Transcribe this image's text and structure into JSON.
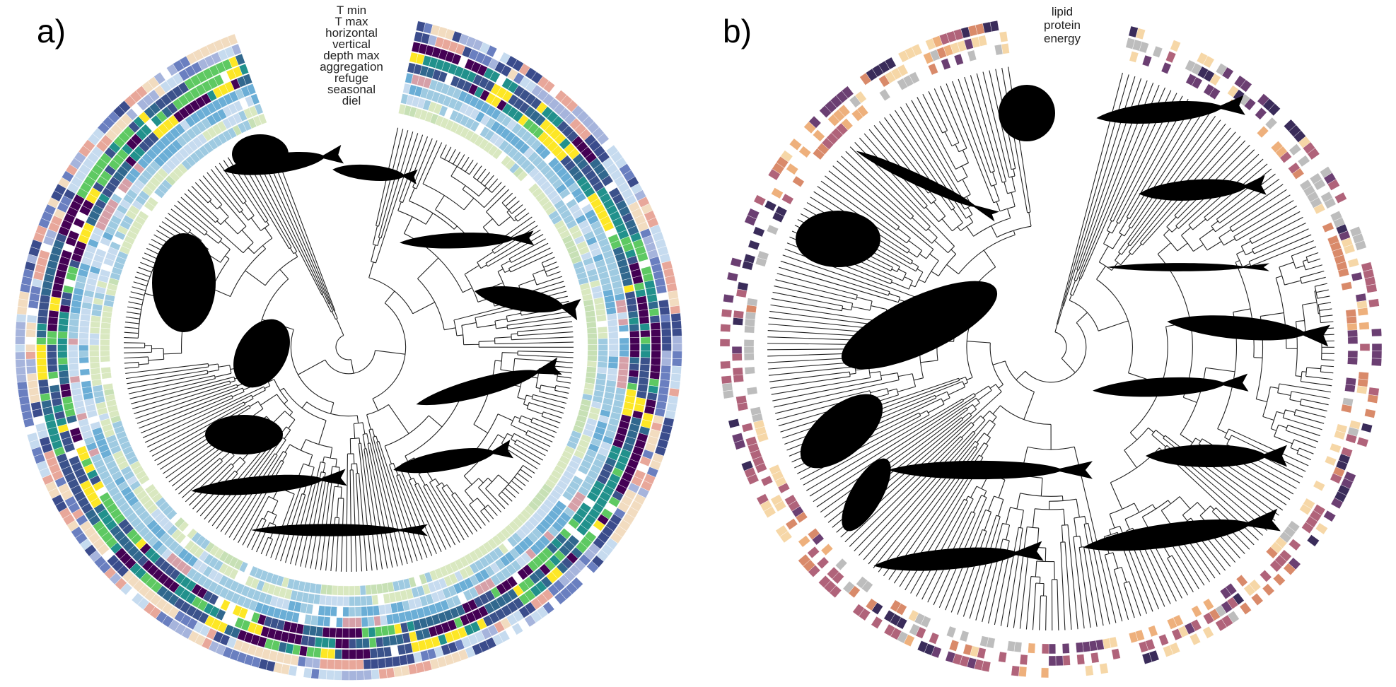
{
  "panels": [
    {
      "label": "a)",
      "trait_labels": [
        "T min",
        "T max",
        "horizontal",
        "vertical",
        "depth max",
        "aggregation",
        "refuge",
        "seasonal",
        "diel"
      ]
    },
    {
      "label": "b)",
      "trait_labels": [
        "lipid",
        "protein",
        "energy"
      ]
    }
  ]
}
